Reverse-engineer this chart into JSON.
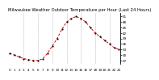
{
  "title": "Milwaukee Weather Outdoor Temperature per Hour (Last 24 Hours)",
  "hours": [
    0,
    1,
    2,
    3,
    4,
    5,
    6,
    7,
    8,
    9,
    10,
    11,
    12,
    13,
    14,
    15,
    16,
    17,
    18,
    19,
    20,
    21,
    22,
    23
  ],
  "temps": [
    31,
    30,
    29,
    28,
    27.5,
    27,
    27,
    28,
    31,
    35,
    39,
    44,
    48,
    50,
    51,
    50,
    48,
    45,
    42,
    40,
    38,
    36,
    34,
    33
  ],
  "line_color": "#dd0000",
  "dot_color": "#000000",
  "ylim": [
    25,
    53
  ],
  "yticks": [
    27,
    30,
    33,
    36,
    39,
    42,
    45,
    48,
    51
  ],
  "grid_positions": [
    3,
    6,
    9,
    12,
    15,
    18,
    21
  ],
  "grid_color": "#999999",
  "bg_color": "#ffffff",
  "title_color": "#000000",
  "title_fontsize": 3.8,
  "tick_fontsize": 3.0,
  "linewidth": 0.7,
  "markersize": 1.2
}
